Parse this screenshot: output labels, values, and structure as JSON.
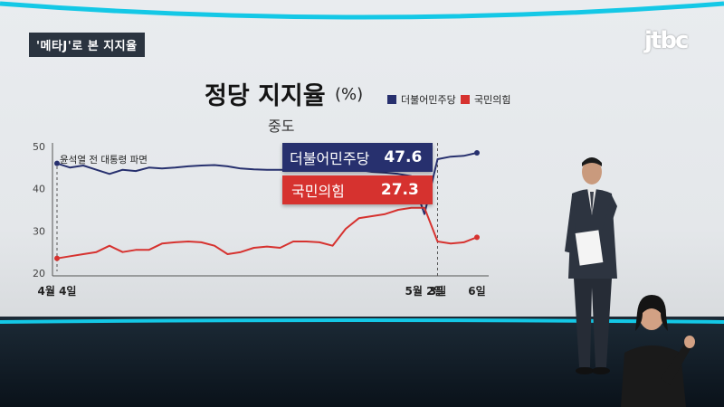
{
  "overlay": {
    "segment_tag": "'메타J'로 본 지지율",
    "logo": "jtbc"
  },
  "chart": {
    "title": "정당 지지율",
    "unit": "(%)",
    "subtitle": "중도",
    "annotation": "윤석열 전 대통령 파면",
    "colors": {
      "blue": "#27306e",
      "red": "#d6322f"
    }
  },
  "callouts": {
    "blue": {
      "name": "더불어민주당",
      "value": "47.6"
    },
    "red": {
      "name": "국민의힘",
      "value": "27.3"
    }
  },
  "chart_data": {
    "type": "line",
    "title": "정당 지지율 (%)",
    "subtitle": "중도",
    "ylim": [
      20,
      50
    ],
    "y_ticks": [
      "50",
      "40",
      "30",
      "20"
    ],
    "grid": false,
    "legend": "top-right",
    "x_labels": [
      {
        "index": 0,
        "text": "4월 4일"
      },
      {
        "index": 28,
        "text": "5월 2일"
      },
      {
        "index": 29,
        "text": "3일"
      },
      {
        "index": 32,
        "text": "6일"
      }
    ],
    "series": [
      {
        "name": "더불어민주당",
        "color": "#27306e",
        "values": [
          46.0,
          45.0,
          45.5,
          44.5,
          43.5,
          44.5,
          44.2,
          45.0,
          44.8,
          45.0,
          45.3,
          45.5,
          45.6,
          45.3,
          44.8,
          44.6,
          44.5,
          44.5,
          44.5,
          44.3,
          44.5,
          45.0,
          44.5,
          44.5,
          44.0,
          43.8,
          43.5,
          43.0,
          34.0,
          47.0,
          47.6,
          47.8,
          48.5
        ]
      },
      {
        "name": "국민의힘",
        "color": "#d6322f",
        "values": [
          23.5,
          24.0,
          24.5,
          25.0,
          26.5,
          25.0,
          25.5,
          25.5,
          27.0,
          27.3,
          27.5,
          27.3,
          26.5,
          24.5,
          25.0,
          26.0,
          26.3,
          26.0,
          27.5,
          27.5,
          27.3,
          26.5,
          30.5,
          33.0,
          33.5,
          34.0,
          35.0,
          35.5,
          35.5,
          27.5,
          27.0,
          27.3,
          28.5
        ]
      }
    ],
    "annotations": [
      {
        "text": "윤석열 전 대통령 파면",
        "index": 0
      },
      {
        "text": "dashed marker",
        "index": 29
      }
    ]
  }
}
